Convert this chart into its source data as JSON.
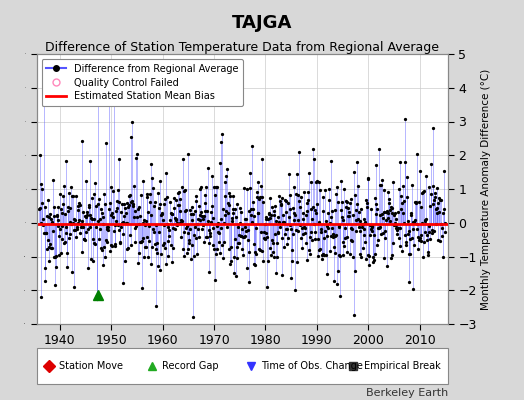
{
  "title": "TAJGA",
  "subtitle": "Difference of Station Temperature Data from Regional Average",
  "ylabel_right": "Monthly Temperature Anomaly Difference (°C)",
  "xlim": [
    1935.5,
    2015.5
  ],
  "ylim": [
    -3,
    5
  ],
  "yticks": [
    -3,
    -2,
    -1,
    0,
    1,
    2,
    3,
    4,
    5
  ],
  "xticks": [
    1940,
    1950,
    1960,
    1970,
    1980,
    1990,
    2000,
    2010
  ],
  "background_color": "#d8d8d8",
  "plot_bg_color": "#ffffff",
  "line_color": "#5555ff",
  "dot_color": "#000000",
  "bias_color": "#ff0000",
  "bias_value": -0.05,
  "record_gap_x": 1947.5,
  "record_gap_y": -2.15,
  "seed": 42,
  "n_points": 912,
  "x_start": 1936.0,
  "x_end": 2014.92,
  "title_fontsize": 13,
  "subtitle_fontsize": 9,
  "tick_fontsize": 9,
  "watermark": "Berkeley Earth",
  "watermark_fontsize": 8
}
